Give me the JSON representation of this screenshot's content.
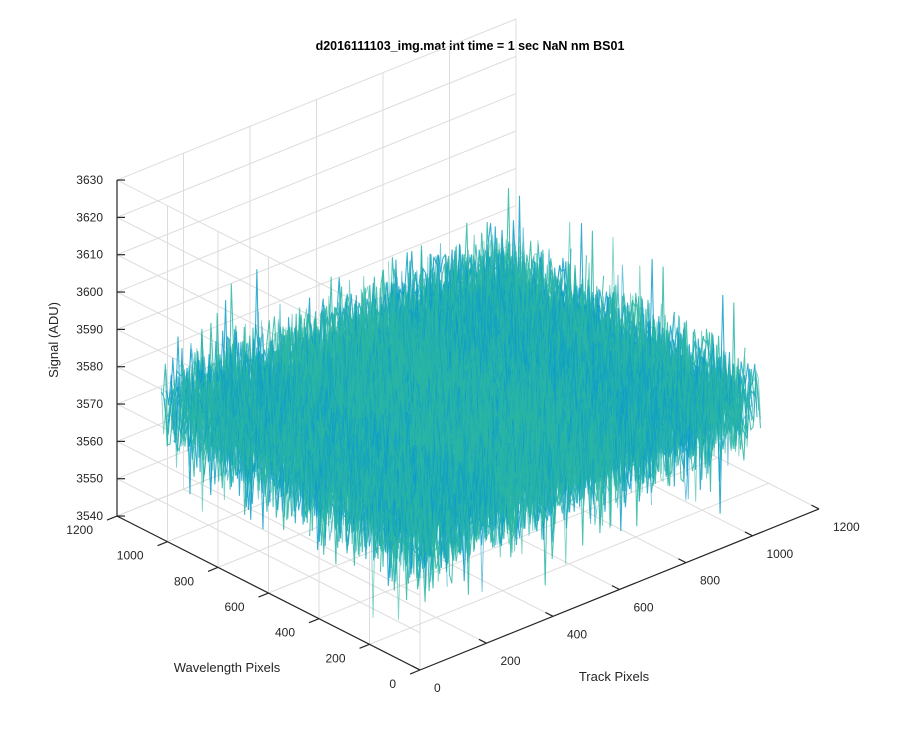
{
  "chart_data": {
    "type": "surface",
    "title": "d2016111103_img.mat int time = 1 sec  NaN nm BS01",
    "xlabel": "Track Pixels",
    "ylabel": "Wavelength Pixels",
    "zlabel": "Signal (ADU)",
    "xlim": [
      0,
      1200
    ],
    "ylim": [
      0,
      1200
    ],
    "zlim": [
      3540,
      3630
    ],
    "x_ticks": [
      "0",
      "200",
      "400",
      "600",
      "800",
      "1000",
      "1200"
    ],
    "y_ticks": [
      "0",
      "200",
      "400",
      "600",
      "800",
      "1000",
      "1200"
    ],
    "z_ticks": [
      "3540",
      "3550",
      "3560",
      "3570",
      "3580",
      "3590",
      "3600",
      "3610",
      "3620",
      "3630"
    ],
    "data_extent": {
      "x": [
        0,
        1024
      ],
      "y": [
        0,
        1024
      ]
    },
    "mean_signal": 3575,
    "noise_range": [
      3548,
      3610
    ],
    "grid": true,
    "colormap": "parula",
    "colors": {
      "low": "#0f9fc9",
      "mid": "#2bb6a4",
      "high": "#c9c22e",
      "axis": "#262626",
      "grid": "#dcdcdc"
    }
  }
}
